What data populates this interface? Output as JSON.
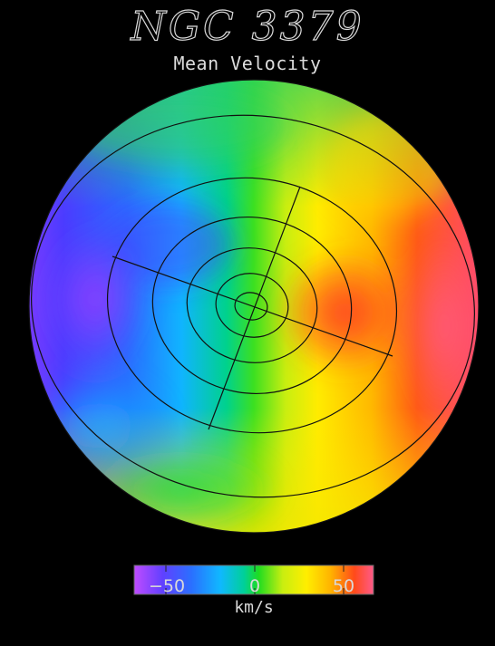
{
  "header": {
    "title": "NGC 3379",
    "subtitle": "Mean Velocity"
  },
  "colorbar": {
    "min": -65,
    "max": 65,
    "ticks": [
      {
        "value": -50,
        "label": "−50"
      },
      {
        "value": 0,
        "label": "0"
      },
      {
        "value": 50,
        "label": "50"
      }
    ],
    "unit": "km/s"
  },
  "colors": {
    "background": "#000000",
    "grid_line": "#111111",
    "text": "#d9d9d9",
    "colorbar_stops": [
      "#c04cff",
      "#3c4cff",
      "#1ea0ff",
      "#00d2a0",
      "#1edc1e",
      "#c8ee10",
      "#ffee00",
      "#ffbe00",
      "#ff5a1e",
      "#ff4a6a"
    ]
  }
}
